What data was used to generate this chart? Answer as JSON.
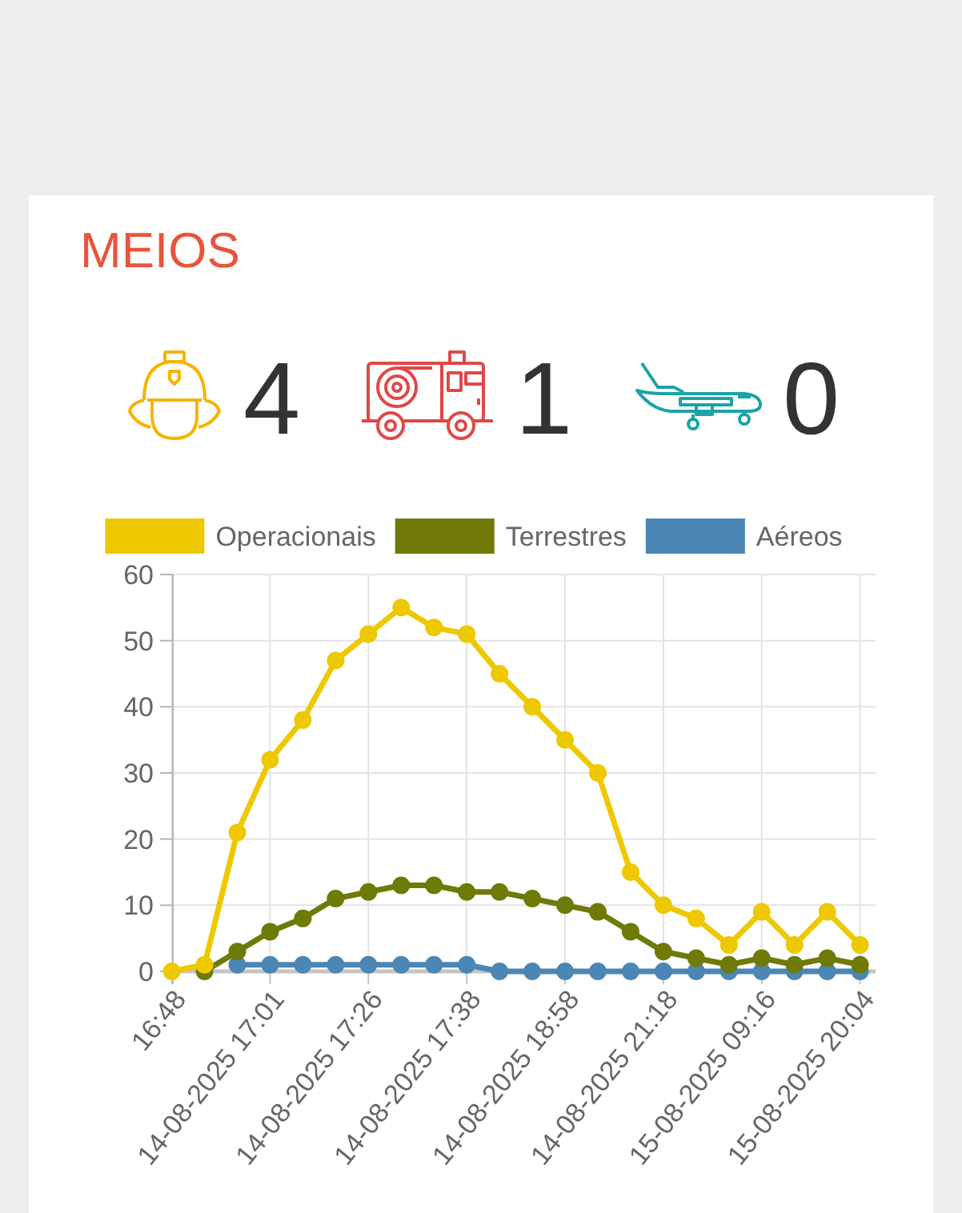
{
  "chart_data": [
    {
      "type": "other",
      "title": "MEIOS",
      "annotations": [
        "4",
        "1",
        "0"
      ]
    },
    {
      "type": "line",
      "categories": [
        "16:48",
        null,
        null,
        "14-08-2025 17:01",
        null,
        null,
        "14-08-2025 17:26",
        null,
        null,
        "14-08-2025 17:38",
        null,
        null,
        "14-08-2025 18:58",
        null,
        null,
        "14-08-2025 21:18",
        null,
        null,
        "15-08-2025 09:16",
        null,
        null,
        "15-08-2025 20:04"
      ],
      "series": [
        {
          "name": "Operacionais",
          "color": "#eec800",
          "values": [
            0,
            1,
            21,
            32,
            38,
            47,
            51,
            55,
            52,
            51,
            45,
            40,
            35,
            30,
            15,
            10,
            8,
            4,
            9,
            4,
            9,
            4
          ]
        },
        {
          "name": "Terrestres",
          "color": "#6f7a08",
          "values": [
            null,
            0,
            3,
            6,
            8,
            11,
            12,
            13,
            13,
            12,
            12,
            11,
            10,
            9,
            6,
            3,
            2,
            1,
            2,
            1,
            2,
            1
          ]
        },
        {
          "name": "Aéreos",
          "color": "#4b86b4",
          "values": [
            null,
            null,
            1,
            1,
            1,
            1,
            1,
            1,
            1,
            1,
            0,
            0,
            0,
            0,
            0,
            0,
            0,
            0,
            0,
            0,
            0,
            0
          ]
        }
      ],
      "ylim": [
        0,
        60
      ],
      "yticks": [
        0,
        10,
        20,
        30,
        40,
        50,
        60
      ],
      "grid": true,
      "legend": "top",
      "marker": "circle",
      "line_style": "solid"
    }
  ]
}
